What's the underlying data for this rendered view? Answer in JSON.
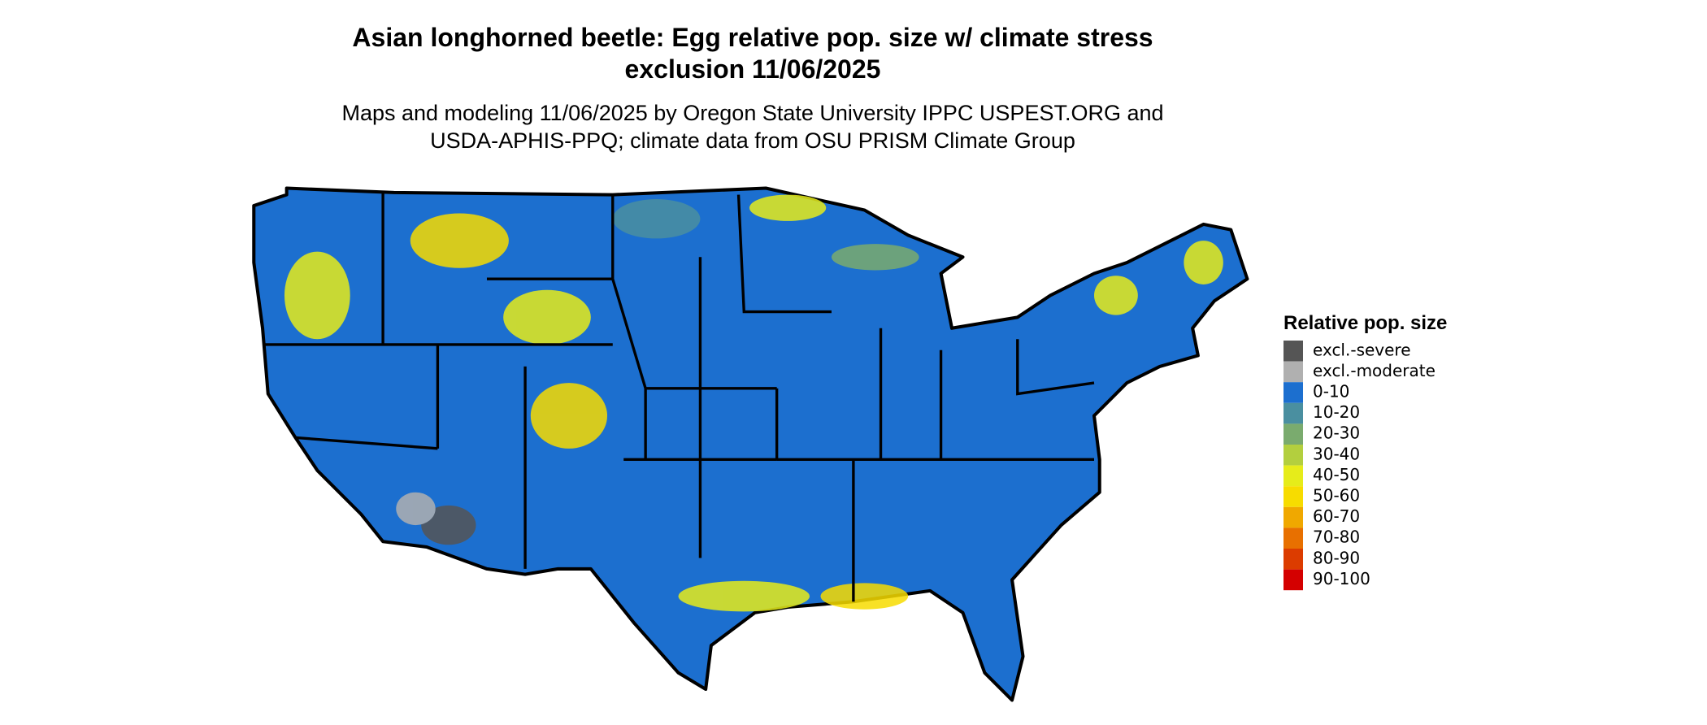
{
  "title": [
    "Asian longhorned beetle: Egg relative pop. size w/ climate stress",
    "exclusion 11/06/2025"
  ],
  "subtitle": [
    "Maps and modeling 11/06/2025 by Oregon State University IPPC USPEST.ORG and",
    "USDA-APHIS-PPQ; climate data from OSU PRISM Climate Group"
  ],
  "legend": {
    "title": "Relative pop. size",
    "items": [
      {
        "label": "excl.-severe",
        "color": "#555555"
      },
      {
        "label": "excl.-moderate",
        "color": "#b0b0b0"
      },
      {
        "label": "0-10",
        "color": "#1c6fcf"
      },
      {
        "label": "10-20",
        "color": "#4a8fa0"
      },
      {
        "label": "20-30",
        "color": "#7aab6e"
      },
      {
        "label": "30-40",
        "color": "#b3cf3e"
      },
      {
        "label": "40-50",
        "color": "#e6ec1a"
      },
      {
        "label": "50-60",
        "color": "#f7dc00"
      },
      {
        "label": "60-70",
        "color": "#f0a800"
      },
      {
        "label": "70-80",
        "color": "#e87000"
      },
      {
        "label": "80-90",
        "color": "#dc3c00"
      },
      {
        "label": "90-100",
        "color": "#d40000"
      }
    ]
  }
}
